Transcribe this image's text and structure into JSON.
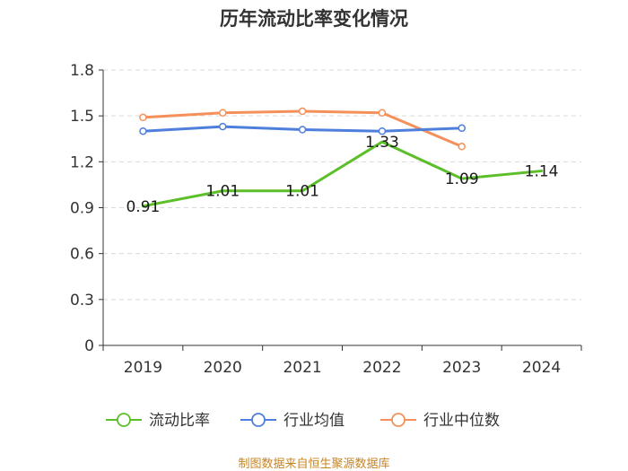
{
  "chart_data": {
    "type": "line",
    "title": "历年流动比率变化情况",
    "categories": [
      "2019",
      "2020",
      "2021",
      "2022",
      "2023",
      "2024"
    ],
    "ylim": [
      0,
      1.8
    ],
    "yticks": [
      "0",
      "0.3",
      "0.6",
      "0.9",
      "1.2",
      "1.5",
      "1.8"
    ],
    "grid": true,
    "legend_position": "bottom",
    "series": [
      {
        "name": "流动比率",
        "color": "#5cbf2a",
        "values": [
          0.91,
          1.01,
          1.01,
          1.33,
          1.09,
          1.14
        ],
        "labels": [
          "0.91",
          "1.01",
          "1.01",
          "1.33",
          "1.09",
          "1.14"
        ],
        "show_markers": false
      },
      {
        "name": "行业均值",
        "color": "#4f7fdc",
        "values": [
          1.4,
          1.43,
          1.41,
          1.4,
          1.42,
          null
        ],
        "show_markers": true
      },
      {
        "name": "行业中位数",
        "color": "#f5905a",
        "values": [
          1.49,
          1.52,
          1.53,
          1.52,
          1.3,
          null
        ],
        "show_markers": true
      }
    ],
    "source": "制图数据来自恒生聚源数据库"
  }
}
